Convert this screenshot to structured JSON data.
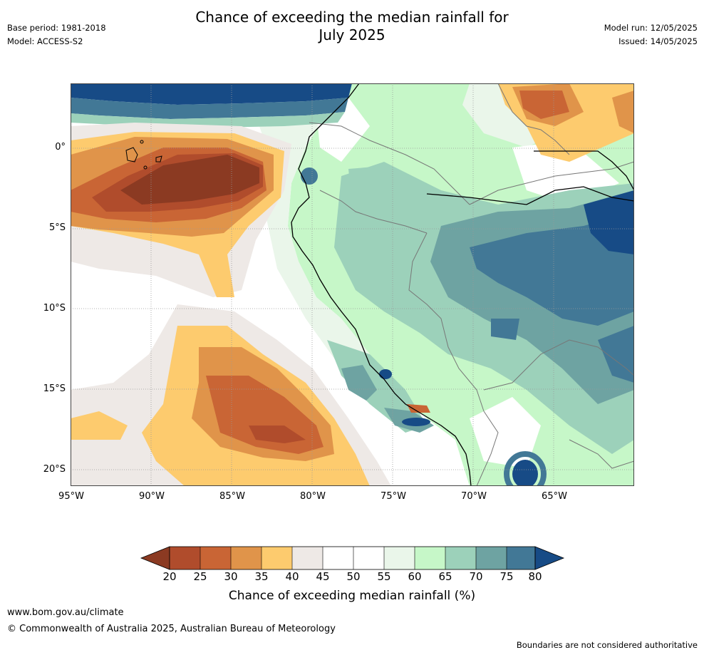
{
  "title_line1": "Chance of exceeding the median rainfall for",
  "title_line2": "July 2025",
  "base_period": "Base period: 1981-2018",
  "model": "Model: ACCESS-S2",
  "model_run": "Model run: 12/05/2025",
  "issued": "Issued: 14/05/2025",
  "lat_labels": [
    "0°",
    "5°S",
    "10°S",
    "15°S",
    "20°S"
  ],
  "lon_labels": [
    "95°W",
    "90°W",
    "85°W",
    "80°W",
    "75°W",
    "70°W",
    "65°W"
  ],
  "colorbar": {
    "label": "Chance of exceeding median rainfall (%)",
    "ticks": [
      "20",
      "25",
      "30",
      "35",
      "40",
      "45",
      "50",
      "55",
      "60",
      "65",
      "70",
      "75",
      "80"
    ],
    "colors": {
      "below20": "#8B3A22",
      "b20_25": "#B04C2C",
      "b25_30": "#C96535",
      "b30_35": "#E0944A",
      "b35_40": "#FDCB6E",
      "b40_45": "#EEE9E6",
      "b45_55": "#FFFFFF",
      "b55_60": "#EAF6EA",
      "b60_65": "#C6F7C8",
      "b65_70": "#9CD1BA",
      "b70_75": "#6EA3A2",
      "b75_80": "#427896",
      "above80": "#174B86"
    }
  },
  "footer_url": "www.bom.gov.au/climate",
  "footer_copyright": "© Commonwealth of Australia 2025, Australian Bureau of Meteorology",
  "footer_note": "Boundaries are not considered authoritative"
}
